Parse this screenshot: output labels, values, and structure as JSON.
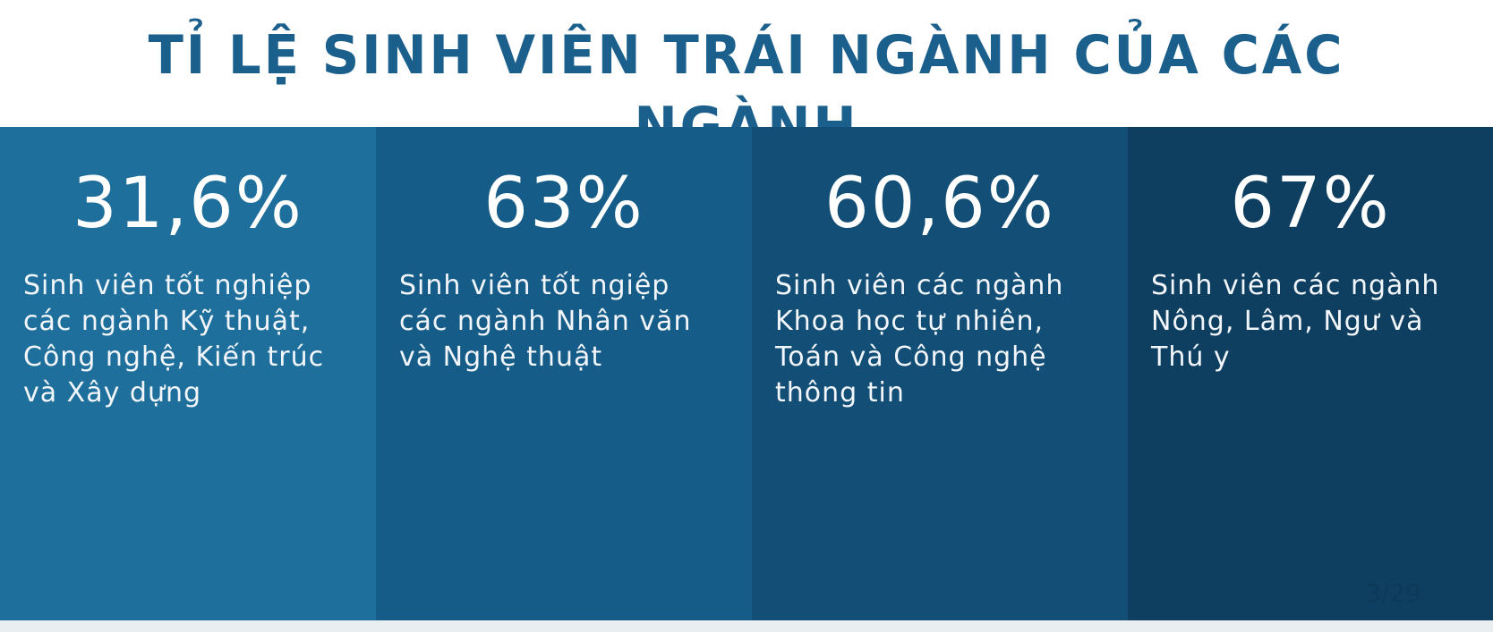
{
  "title": "TỈ LỆ SINH VIÊN TRÁI NGÀNH CỦA CÁC NGÀNH",
  "colors": {
    "title": "#1b5f8c",
    "panel_1": "#1f6f9c",
    "panel_2": "#155c88",
    "panel_3": "#124e75",
    "panel_4": "#0f3f60",
    "page_indicator": "#0c3350"
  },
  "panels": [
    {
      "value": "31,6%",
      "description": "Sinh viên tốt nghiệp\ncác ngành Kỹ thuật,\nCông nghệ, Kiến trúc\nvà Xây dựng"
    },
    {
      "value": "63%",
      "description": "Sinh viên tốt ngiệp\ncác ngành Nhân văn\nvà Nghệ thuật"
    },
    {
      "value": "60,6%",
      "description": "Sinh viên các ngành\nKhoa học tự nhiên,\nToán và Công nghệ\nthông tin"
    },
    {
      "value": "67%",
      "description": "Sinh viên các ngành\nNông, Lâm, Ngư và\nThú y"
    }
  ],
  "page_indicator": "3/29"
}
